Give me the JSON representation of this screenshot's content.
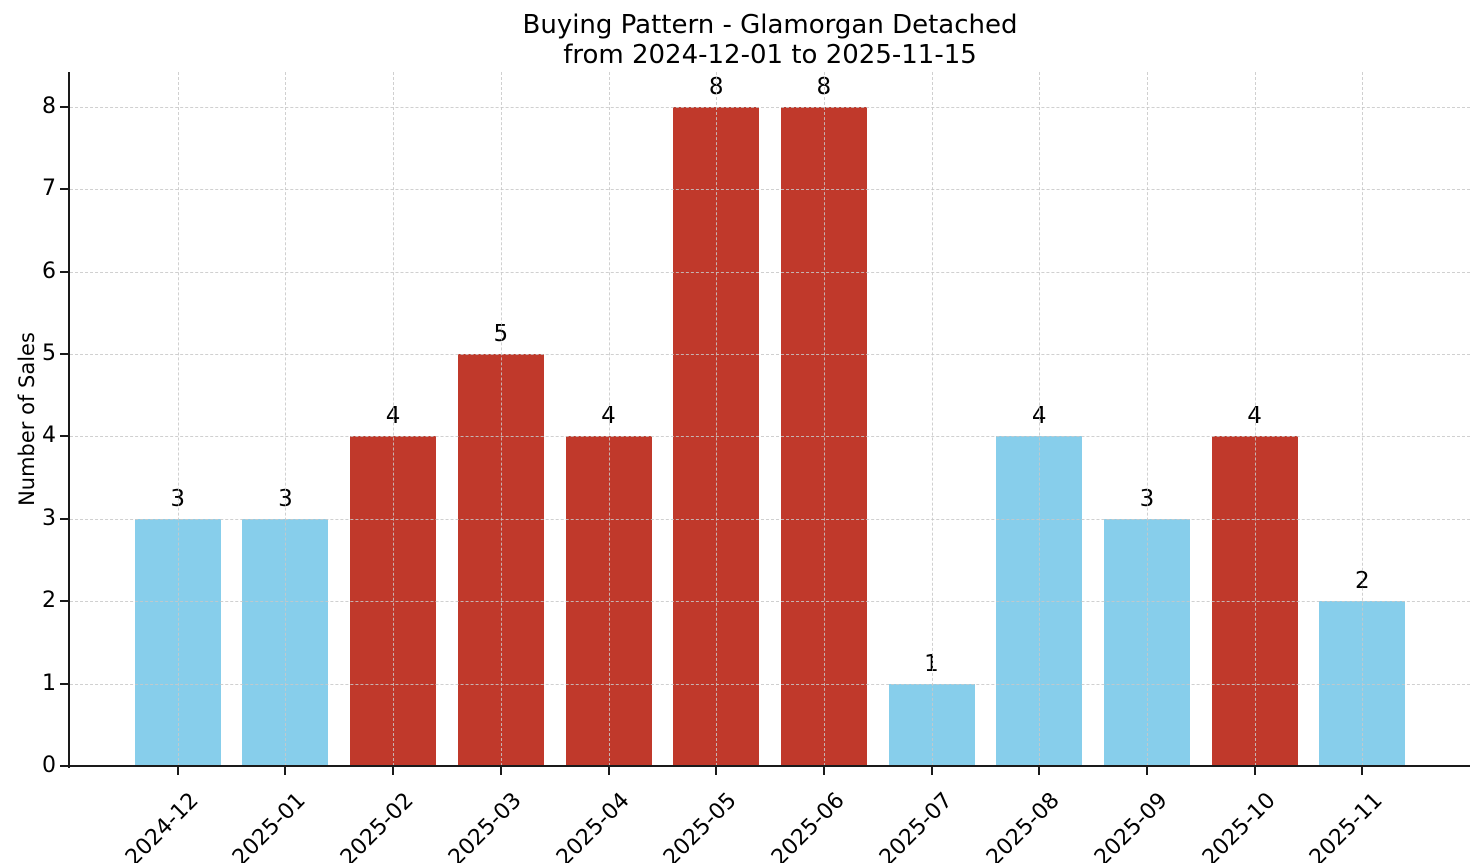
{
  "chart_data": {
    "type": "bar",
    "title": "Buying Pattern - Glamorgan Detached",
    "subtitle": "from 2024-12-01 to 2025-11-15",
    "xlabel": "",
    "ylabel": "Number of Sales",
    "categories": [
      "2024-12",
      "2025-01",
      "2025-02",
      "2025-03",
      "2025-04",
      "2025-05",
      "2025-06",
      "2025-07",
      "2025-08",
      "2025-09",
      "2025-10",
      "2025-11"
    ],
    "values": [
      3,
      3,
      4,
      5,
      4,
      8,
      8,
      1,
      4,
      3,
      4,
      2
    ],
    "bar_colors": [
      "#87ceeb",
      "#87ceeb",
      "#c0392b",
      "#c0392b",
      "#c0392b",
      "#c0392b",
      "#c0392b",
      "#87ceeb",
      "#87ceeb",
      "#87ceeb",
      "#c0392b",
      "#87ceeb"
    ],
    "yticks": [
      0,
      1,
      2,
      3,
      4,
      5,
      6,
      7,
      8
    ],
    "ylim": [
      0,
      8.42
    ],
    "bar_width_fraction": 0.8,
    "x_tick_rotation": 45,
    "grid": {
      "visible": true,
      "style": "dashed",
      "axes": "both",
      "over_bars": true
    },
    "legend": "none",
    "colors": {
      "low_month": "#87ceeb",
      "high_month": "#c0392b",
      "grid": "#c8c8c8",
      "spine": "#1a1a1a",
      "text": "#000000",
      "background": "#ffffff"
    }
  }
}
